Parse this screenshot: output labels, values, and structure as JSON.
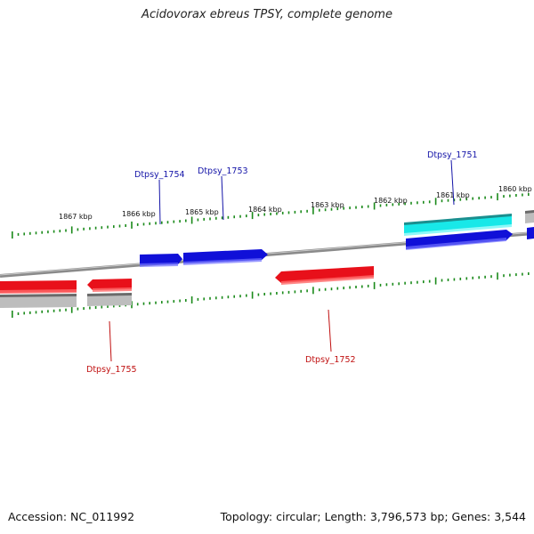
{
  "title": "Acidovorax ebreus TPSY, complete genome",
  "footer": {
    "accession": "Accession: NC_011992",
    "summary": "Topology: circular; Length: 3,796,573 bp; Genes: 3,544"
  },
  "colors": {
    "forward_gene": "#1010d8",
    "reverse_gene": "#e8101a",
    "selected_gene": "#18e8e8",
    "pseudo_gene": "#bdbdbd",
    "backbone": "#8a8a8a",
    "tick": "#1a8a1a",
    "forward_label": "#1414a8",
    "reverse_label": "#c01010"
  },
  "scale": {
    "unit": "kbp",
    "ticks": [
      {
        "label": "1867 kbp",
        "kbp": 1867
      },
      {
        "label": "1866 kbp",
        "kbp": 1866
      },
      {
        "label": "1865 kbp",
        "kbp": 1865
      },
      {
        "label": "1864 kbp",
        "kbp": 1864
      },
      {
        "label": "1863 kbp",
        "kbp": 1863
      },
      {
        "label": "1862 kbp",
        "kbp": 1862
      },
      {
        "label": "1861 kbp",
        "kbp": 1861
      },
      {
        "label": "1860 kbp",
        "kbp": 1860
      }
    ]
  },
  "gene_labels": [
    {
      "text": "Dtpsy_1754",
      "strand": "forward"
    },
    {
      "text": "Dtpsy_1753",
      "strand": "forward"
    },
    {
      "text": "Dtpsy_1751",
      "strand": "forward"
    },
    {
      "text": "Dtpsy_1755",
      "strand": "reverse"
    },
    {
      "text": "Dtpsy_1752",
      "strand": "reverse"
    }
  ]
}
